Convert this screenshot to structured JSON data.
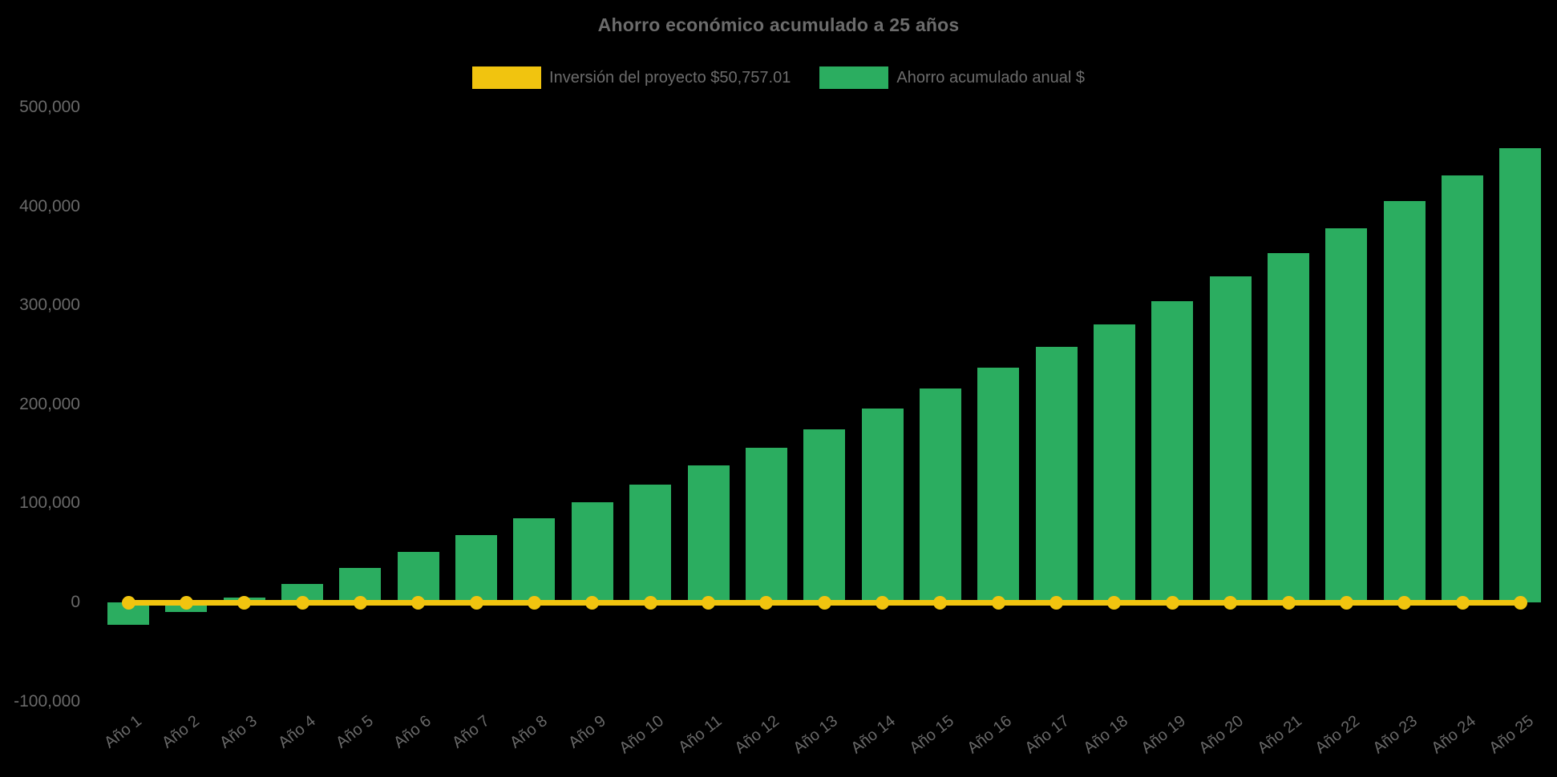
{
  "title": "Ahorro económico acumulado a 25 años",
  "colors": {
    "background": "#000000",
    "bar_green": "#2BAD60",
    "line_yellow": "#F1C40F",
    "text_gray": "#696969"
  },
  "legend": {
    "items": [
      {
        "label": "Inversión del proyecto $50,757.01",
        "color": "#F1C40F",
        "series_type": "line"
      },
      {
        "label": "Ahorro acumulado anual $",
        "color": "#2BAD60",
        "series_type": "bar"
      }
    ]
  },
  "y_axis": {
    "tick_labels": [
      "500,000",
      "400,000",
      "300,000",
      "200,000",
      "100,000",
      "0",
      "-100,000"
    ],
    "tick_values": [
      500000,
      400000,
      300000,
      200000,
      100000,
      0,
      -100000
    ]
  },
  "chart_data": {
    "type": "bar",
    "title": "Ahorro económico acumulado a 25 años",
    "xlabel": "",
    "ylabel": "",
    "ylim": [
      -100000,
      500000
    ],
    "ytick_step": 100000,
    "grid": false,
    "legend_position": "top",
    "categories": [
      "Año 1",
      "Año 2",
      "Año 3",
      "Año 4",
      "Año 5",
      "Año 6",
      "Año 7",
      "Año 8",
      "Año 9",
      "Año 10",
      "Año 11",
      "Año 12",
      "Año 13",
      "Año 14",
      "Año 15",
      "Año 16",
      "Año 17",
      "Año 18",
      "Año 19",
      "Año 20",
      "Año 21",
      "Año 22",
      "Año 23",
      "Año 24",
      "Año 25"
    ],
    "series": [
      {
        "name": "Inversión del proyecto $50,757.01",
        "type": "line",
        "color": "#F1C40F",
        "marker": "circle",
        "values": [
          0,
          0,
          0,
          0,
          0,
          0,
          0,
          0,
          0,
          0,
          0,
          0,
          0,
          0,
          0,
          0,
          0,
          0,
          0,
          0,
          0,
          0,
          0,
          0,
          0
        ]
      },
      {
        "name": "Ahorro acumulado anual $",
        "type": "bar",
        "color": "#2BAD60",
        "values": [
          -23000,
          -10000,
          5000,
          19000,
          35000,
          51000,
          68000,
          85000,
          101000,
          119000,
          138000,
          156000,
          175000,
          196000,
          216000,
          237000,
          258000,
          281000,
          304000,
          329000,
          353000,
          378000,
          405000,
          431000,
          459000
        ]
      }
    ]
  }
}
